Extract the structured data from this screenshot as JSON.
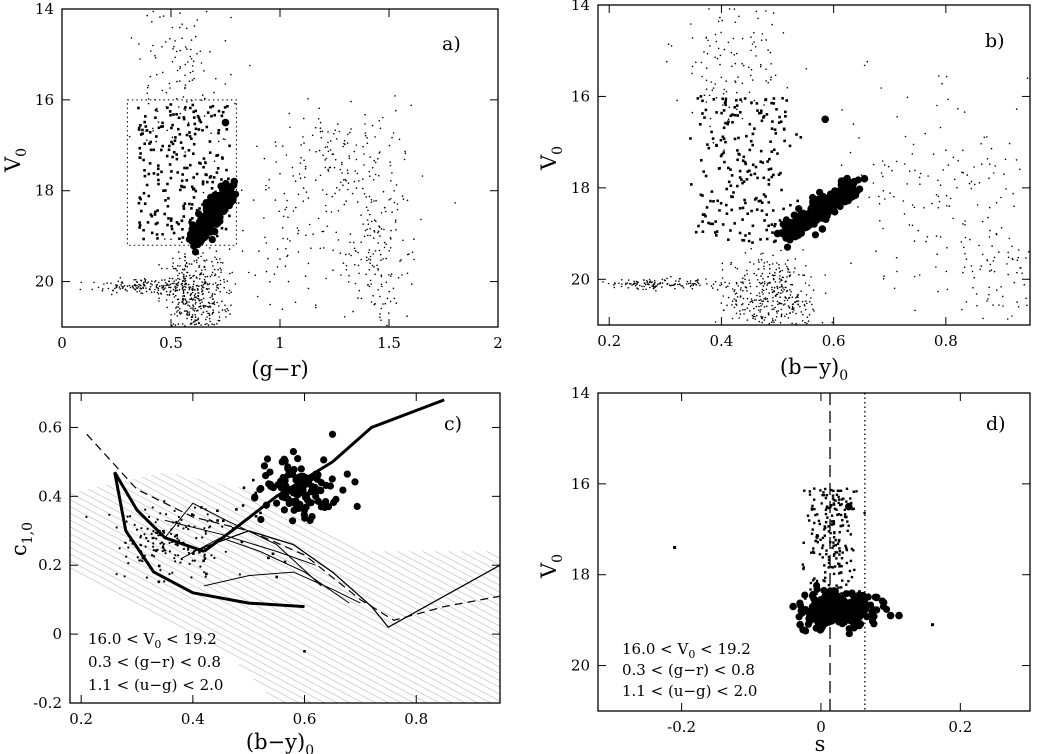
{
  "chart_data": [
    {
      "type": "scatter",
      "panel_label": "a)",
      "xlabel": "(g−r)",
      "ylabel": "V",
      "ylabel_sub": "0",
      "xlim": [
        0,
        2
      ],
      "ylim": [
        21,
        14
      ],
      "xticks": [
        "0",
        "0.5",
        "1",
        "1.5",
        "2"
      ],
      "yticks": [
        "14",
        "16",
        "18",
        "20"
      ],
      "selection_box": {
        "x": [
          0.3,
          0.8
        ],
        "y": [
          16.0,
          19.2
        ]
      },
      "series": [
        {
          "name": "",
          "marker": "bold-dot",
          "points": [
            [
              0.75,
              16.5
            ]
          ]
        },
        {
          "name": "",
          "marker": "bold-dot-cluster",
          "points": [
            [
              0.62,
              18.9
            ],
            [
              0.65,
              18.7
            ],
            [
              0.68,
              18.8
            ],
            [
              0.7,
              18.6
            ],
            [
              0.72,
              18.5
            ],
            [
              0.74,
              18.4
            ],
            [
              0.76,
              18.3
            ],
            [
              0.78,
              18.1
            ],
            [
              0.79,
              17.8
            ],
            [
              0.66,
              19.0
            ],
            [
              0.6,
              19.1
            ],
            [
              0.7,
              18.9
            ]
          ]
        }
      ]
    },
    {
      "type": "scatter",
      "panel_label": "b)",
      "xlabel": "(b−y)",
      "xlabel_sub": "0",
      "ylabel": "V",
      "ylabel_sub": "0",
      "xlim": [
        0.18,
        0.95
      ],
      "ylim": [
        21,
        14
      ],
      "xticks": [
        "0.2",
        "0.4",
        "0.6",
        "0.8"
      ],
      "yticks": [
        "14",
        "16",
        "18",
        "20"
      ],
      "series": [
        {
          "name": "",
          "marker": "bold-dot",
          "points": [
            [
              0.585,
              16.5
            ]
          ]
        },
        {
          "name": "",
          "marker": "bold-dot-cluster",
          "points": [
            [
              0.52,
              18.9
            ],
            [
              0.55,
              18.8
            ],
            [
              0.57,
              18.7
            ],
            [
              0.6,
              18.5
            ],
            [
              0.62,
              18.3
            ],
            [
              0.64,
              18.1
            ],
            [
              0.655,
              17.8
            ],
            [
              0.5,
              19.0
            ],
            [
              0.53,
              18.6
            ],
            [
              0.58,
              18.9
            ]
          ]
        }
      ]
    },
    {
      "type": "scatter",
      "panel_label": "c)",
      "xlabel": "(b−y)",
      "xlabel_sub": "0",
      "ylabel": "c",
      "ylabel_sub": "1,0",
      "xlim": [
        0.18,
        0.95
      ],
      "ylim": [
        -0.2,
        0.7
      ],
      "xticks": [
        "0.2",
        "0.4",
        "0.6",
        "0.8"
      ],
      "yticks": [
        "-0.2",
        "0",
        "0.2",
        "0.4",
        "0.6"
      ],
      "notes": [
        "16.0 < V",
        "0.3 < (g−r) < 0.8",
        "1.1 < (u−g) < 2.0"
      ],
      "note_sub": "0",
      "note_tail": " < 19.2",
      "series": [
        {
          "name": "",
          "marker": "bold-dot",
          "points": [
            [
              0.58,
              0.42
            ],
            [
              0.6,
              0.45
            ],
            [
              0.62,
              0.4
            ],
            [
              0.55,
              0.38
            ],
            [
              0.57,
              0.48
            ],
            [
              0.6,
              0.36
            ],
            [
              0.63,
              0.44
            ],
            [
              0.52,
              0.42
            ],
            [
              0.56,
              0.5
            ],
            [
              0.65,
              0.58
            ],
            [
              0.58,
              0.53
            ],
            [
              0.61,
              0.33
            ]
          ]
        },
        {
          "name": "",
          "marker": "thick-line",
          "points": [
            [
              0.42,
              0.24
            ],
            [
              0.47,
              0.3
            ],
            [
              0.55,
              0.4
            ],
            [
              0.65,
              0.5
            ],
            [
              0.72,
              0.6
            ],
            [
              0.85,
              0.68
            ]
          ]
        },
        {
          "name": "",
          "marker": "thick-line",
          "points": [
            [
              0.26,
              0.47
            ],
            [
              0.3,
              0.36
            ],
            [
              0.35,
              0.28
            ],
            [
              0.42,
              0.24
            ]
          ]
        },
        {
          "name": "",
          "marker": "thick-line",
          "points": [
            [
              0.26,
              0.47
            ],
            [
              0.28,
              0.3
            ],
            [
              0.33,
              0.18
            ],
            [
              0.4,
              0.12
            ],
            [
              0.5,
              0.09
            ],
            [
              0.6,
              0.08
            ]
          ]
        },
        {
          "name": "",
          "marker": "dashed-line",
          "points": [
            [
              0.21,
              0.58
            ],
            [
              0.3,
              0.42
            ],
            [
              0.4,
              0.34
            ],
            [
              0.5,
              0.3
            ],
            [
              0.6,
              0.23
            ],
            [
              0.7,
              0.1
            ],
            [
              0.76,
              0.04
            ],
            [
              0.85,
              0.08
            ],
            [
              0.95,
              0.11
            ]
          ]
        },
        {
          "name": "",
          "marker": "thin-line",
          "points": [
            [
              0.4,
              0.24
            ],
            [
              0.5,
              0.3
            ],
            [
              0.58,
              0.26
            ],
            [
              0.65,
              0.18
            ],
            [
              0.72,
              0.08
            ],
            [
              0.75,
              0.02
            ],
            [
              0.85,
              0.11
            ],
            [
              0.95,
              0.2
            ]
          ]
        }
      ]
    },
    {
      "type": "scatter",
      "panel_label": "d)",
      "xlabel": "s",
      "ylabel": "V",
      "ylabel_sub": "0",
      "xlim": [
        -0.32,
        0.3
      ],
      "ylim": [
        21,
        14
      ],
      "xticks": [
        "-0.2",
        "0",
        "0.2"
      ],
      "yticks": [
        "14",
        "16",
        "18",
        "20"
      ],
      "reference_lines": [
        {
          "x": 0.013,
          "style": "dashed"
        },
        {
          "x": 0.063,
          "style": "dotted"
        }
      ],
      "notes": [
        "16.0 < V",
        "0.3 < (g−r) < 0.8",
        "1.1 < (u−g) < 2.0"
      ],
      "note_sub": "0",
      "note_tail": " < 19.2",
      "series": [
        {
          "name": "",
          "marker": "square",
          "points": [
            [
              -0.21,
              17.4
            ],
            [
              0.16,
              19.1
            ]
          ]
        },
        {
          "name": "",
          "marker": "bold-dot",
          "points": [
            [
              0.04,
              16.5
            ],
            [
              -0.04,
              18.7
            ],
            [
              0.1,
              18.9
            ],
            [
              0.112,
              18.9
            ],
            [
              -0.03,
              19.1
            ],
            [
              0.02,
              18.4
            ],
            [
              0.05,
              18.7
            ],
            [
              0.08,
              18.5
            ]
          ]
        }
      ]
    }
  ]
}
